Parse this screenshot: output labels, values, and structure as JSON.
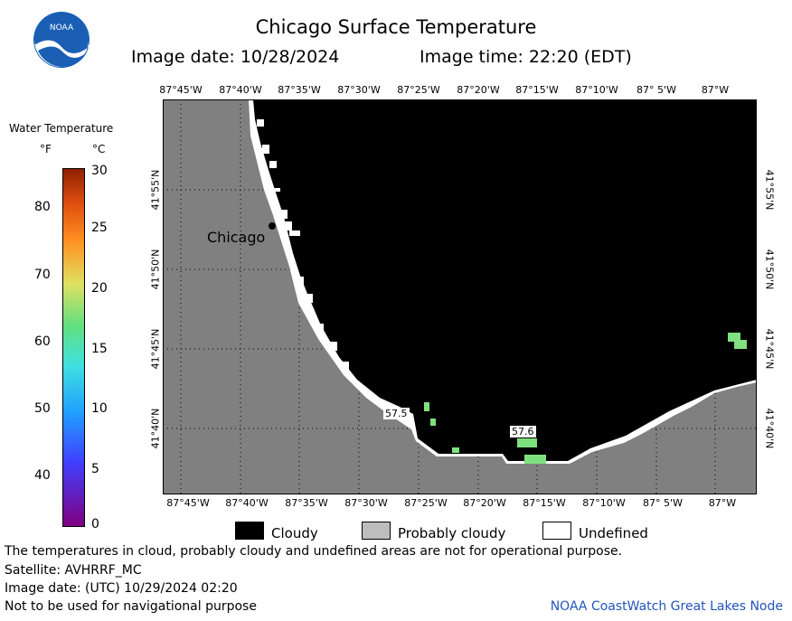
{
  "header": {
    "title": "Chicago Surface Temperature",
    "image_date_label": "Image date: 10/28/2024",
    "image_time_label": "Image time: 22:20 (EDT)",
    "logo_text": "NOAA"
  },
  "map": {
    "city_label": "Chicago",
    "lon_labels": [
      "87°45'W",
      "87°40'W",
      "87°35'W",
      "87°30'W",
      "87°25'W",
      "87°20'W",
      "87°15'W",
      "87°10'W",
      "87° 5'W",
      "87°W"
    ],
    "lat_labels": [
      "41°55'N",
      "41°50'N",
      "41°45'N",
      "41°40'N"
    ],
    "temp_labels": [
      "57.5",
      "57.6"
    ],
    "colors": {
      "land": "#808080",
      "cloud": "#000000",
      "water_valid": "#7fe07f",
      "undefined": "#ffffff",
      "grid": "#000000"
    }
  },
  "legend": {
    "title": "Water Temperature",
    "unit_f": "°F",
    "unit_c": "°C",
    "f_ticks": [
      "80",
      "70",
      "60",
      "50",
      "40"
    ],
    "c_ticks": [
      "30",
      "25",
      "20",
      "15",
      "10",
      "5",
      "0"
    ],
    "colorbar": [
      "#800080",
      "#4040ff",
      "#20a0ff",
      "#40e0e0",
      "#60e080",
      "#e0e060",
      "#ff9020",
      "#e05010",
      "#902000"
    ]
  },
  "key": {
    "cloudy": "Cloudy",
    "probably_cloudy": "Probably cloudy",
    "undefined": "Undefined"
  },
  "footer": {
    "line1": "The temperatures in cloud, probably cloudy and undefined areas are not for operational purpose.",
    "line2": "Satellite: AVHRRF_MC",
    "line3": "Image date: (UTC) 10/29/2024  02:20",
    "line4": "Not to be used for navigational purpose",
    "credit": "NOAA CoastWatch Great Lakes Node"
  }
}
